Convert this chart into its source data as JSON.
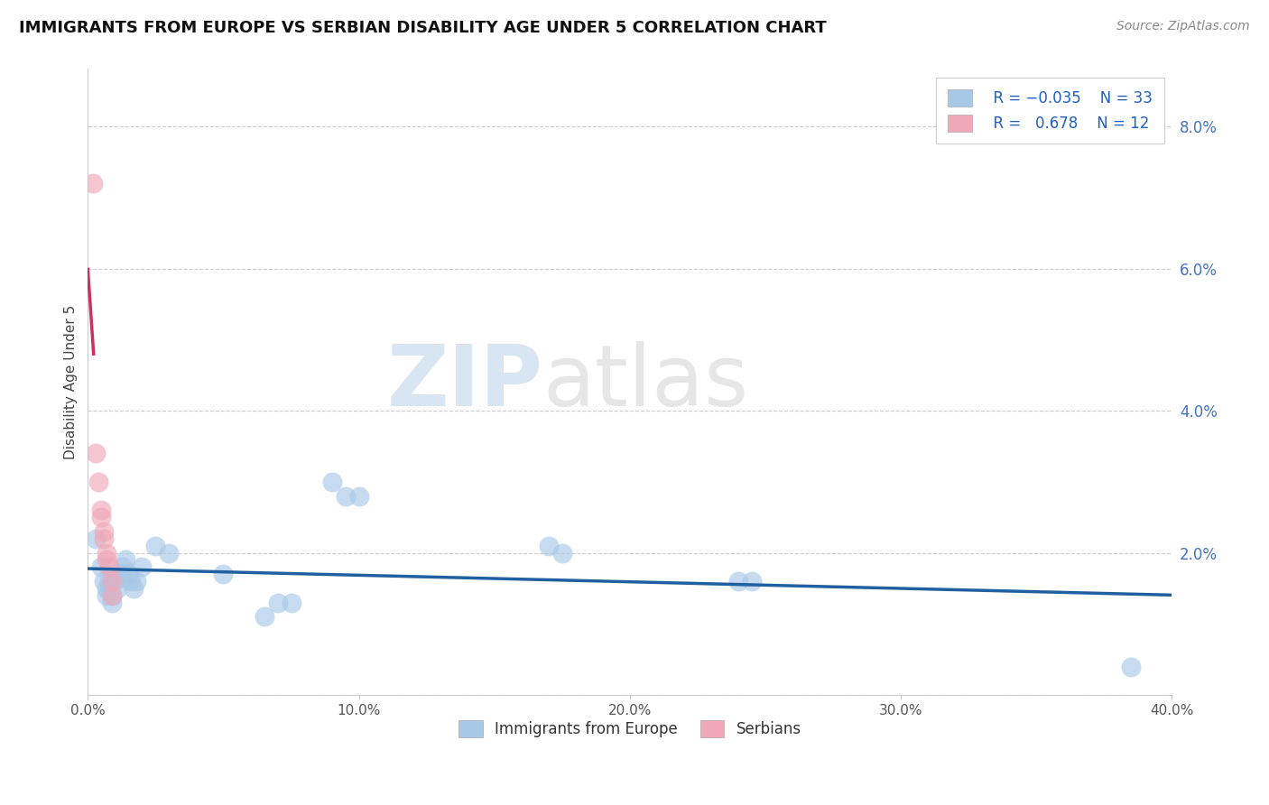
{
  "title": "IMMIGRANTS FROM EUROPE VS SERBIAN DISABILITY AGE UNDER 5 CORRELATION CHART",
  "source": "Source: ZipAtlas.com",
  "ylabel": "Disability Age Under 5",
  "xlim": [
    0.0,
    0.4
  ],
  "ylim": [
    0.0,
    0.088
  ],
  "x_ticks": [
    0.0,
    0.1,
    0.2,
    0.3,
    0.4
  ],
  "x_tick_labels": [
    "0.0%",
    "10.0%",
    "20.0%",
    "30.0%",
    "40.0%"
  ],
  "y_ticks": [
    0.0,
    0.02,
    0.04,
    0.06,
    0.08
  ],
  "y_tick_labels": [
    "",
    "2.0%",
    "4.0%",
    "6.0%",
    "8.0%"
  ],
  "legend_europe": "Immigrants from Europe",
  "legend_serbian": "Serbians",
  "R_europe": "-0.035",
  "N_europe": "33",
  "R_serbian": "0.678",
  "N_serbian": "12",
  "blue_color": "#A8C8E8",
  "pink_color": "#F0A8B8",
  "blue_line_color": "#2060A0",
  "pink_line_color": "#D03060",
  "blue_scatter": [
    [
      0.003,
      0.022
    ],
    [
      0.005,
      0.018
    ],
    [
      0.006,
      0.016
    ],
    [
      0.007,
      0.015
    ],
    [
      0.007,
      0.014
    ],
    [
      0.008,
      0.015
    ],
    [
      0.008,
      0.016
    ],
    [
      0.009,
      0.014
    ],
    [
      0.009,
      0.013
    ],
    [
      0.01,
      0.016
    ],
    [
      0.011,
      0.015
    ],
    [
      0.012,
      0.017
    ],
    [
      0.013,
      0.018
    ],
    [
      0.014,
      0.019
    ],
    [
      0.015,
      0.017
    ],
    [
      0.016,
      0.016
    ],
    [
      0.017,
      0.015
    ],
    [
      0.018,
      0.016
    ],
    [
      0.02,
      0.018
    ],
    [
      0.025,
      0.021
    ],
    [
      0.03,
      0.02
    ],
    [
      0.05,
      0.017
    ],
    [
      0.065,
      0.011
    ],
    [
      0.07,
      0.013
    ],
    [
      0.075,
      0.013
    ],
    [
      0.09,
      0.03
    ],
    [
      0.095,
      0.028
    ],
    [
      0.1,
      0.028
    ],
    [
      0.17,
      0.021
    ],
    [
      0.175,
      0.02
    ],
    [
      0.24,
      0.016
    ],
    [
      0.245,
      0.016
    ],
    [
      0.385,
      0.004
    ]
  ],
  "pink_scatter": [
    [
      0.002,
      0.072
    ],
    [
      0.003,
      0.034
    ],
    [
      0.004,
      0.03
    ],
    [
      0.005,
      0.026
    ],
    [
      0.005,
      0.025
    ],
    [
      0.006,
      0.023
    ],
    [
      0.006,
      0.022
    ],
    [
      0.007,
      0.02
    ],
    [
      0.007,
      0.019
    ],
    [
      0.008,
      0.018
    ],
    [
      0.009,
      0.016
    ],
    [
      0.009,
      0.014
    ]
  ],
  "background_color": "#FFFFFF",
  "grid_color": "#CCCCCC",
  "watermark_zip": "ZIP",
  "watermark_atlas": "atlas"
}
